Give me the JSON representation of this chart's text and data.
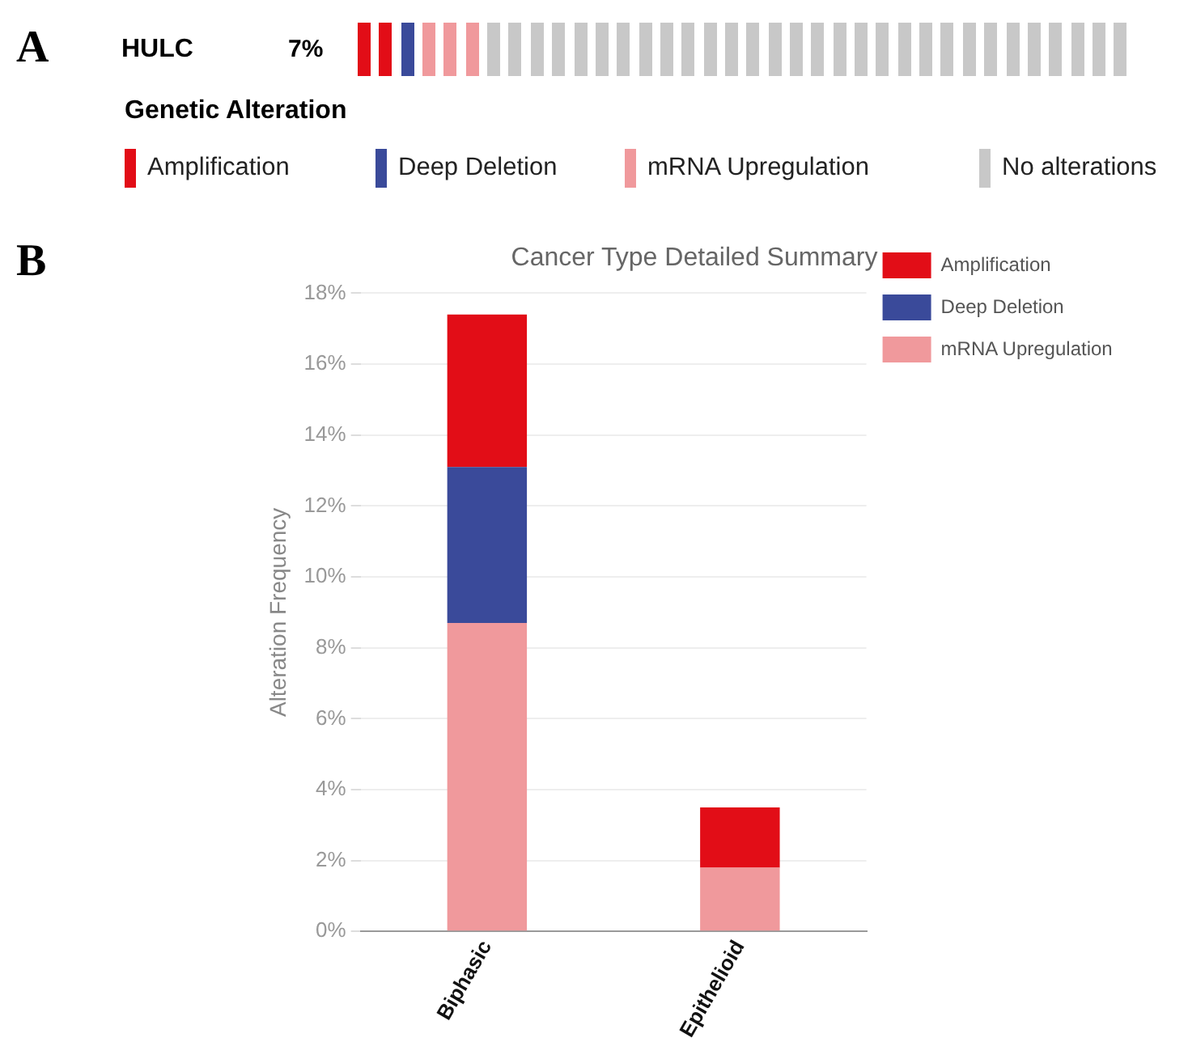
{
  "chart_data": [
    {
      "type": "other",
      "title": "HULC",
      "annotations": [
        "A",
        "7%"
      ],
      "legend_title": "Genetic Alteration",
      "legend": "bottom",
      "series": [
        {
          "name": "Amplification",
          "color": "#e20d17"
        },
        {
          "name": "Deep Deletion",
          "color": "#3a4a9a"
        },
        {
          "name": "mRNA Upregulation",
          "color": "#f0999c"
        },
        {
          "name": "No alterations",
          "color": "#c8c8c8"
        }
      ],
      "colors": [
        "#e20d17",
        "#e20d17",
        "#3a4a9a",
        "#f0999c",
        "#f0999c",
        "#f0999c",
        "#c8c8c8",
        "#c8c8c8",
        "#c8c8c8",
        "#c8c8c8",
        "#c8c8c8",
        "#c8c8c8",
        "#c8c8c8",
        "#c8c8c8",
        "#c8c8c8",
        "#c8c8c8",
        "#c8c8c8",
        "#c8c8c8",
        "#c8c8c8",
        "#c8c8c8",
        "#c8c8c8",
        "#c8c8c8",
        "#c8c8c8",
        "#c8c8c8",
        "#c8c8c8",
        "#c8c8c8",
        "#c8c8c8",
        "#c8c8c8",
        "#c8c8c8",
        "#c8c8c8",
        "#c8c8c8",
        "#c8c8c8",
        "#c8c8c8",
        "#c8c8c8",
        "#c8c8c8",
        "#c8c8c8"
      ]
    },
    {
      "type": "bar",
      "title": "Cancer Type Detailed Summary",
      "ylabel": "Alteration Frequency",
      "annotations": [
        "B"
      ],
      "stacked": true,
      "grid": "y",
      "legend": "top right",
      "categories": [
        "Biphasic",
        "Epithelioid"
      ],
      "series": [
        {
          "name": "mRNA Upregulation",
          "color": "#f0999c",
          "values": [
            8.7,
            1.8
          ]
        },
        {
          "name": "Deep Deletion",
          "color": "#3a4a9a",
          "values": [
            4.4,
            null
          ]
        },
        {
          "name": "Amplification",
          "color": "#e20d17",
          "values": [
            4.3,
            1.7
          ]
        }
      ],
      "ylim": [
        0,
        18
      ],
      "yticks": [
        {
          "value": 0,
          "label": "0%"
        },
        {
          "value": 2,
          "label": "2%"
        },
        {
          "value": 4,
          "label": "4%"
        },
        {
          "value": 6,
          "label": "6%"
        },
        {
          "value": 8,
          "label": "8%"
        },
        {
          "value": 10,
          "label": "10%"
        },
        {
          "value": 12,
          "label": "12%"
        },
        {
          "value": 14,
          "label": "14%"
        },
        {
          "value": 16,
          "label": "16%"
        },
        {
          "value": 18,
          "label": "18%"
        }
      ]
    }
  ]
}
